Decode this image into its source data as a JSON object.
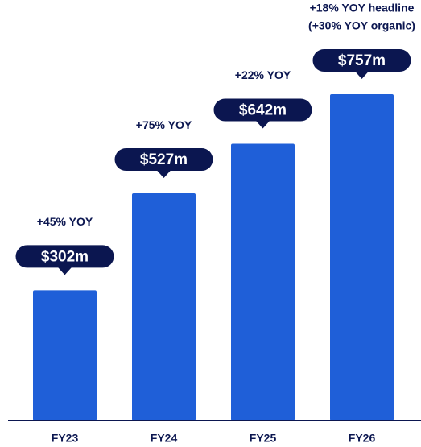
{
  "chart_data": {
    "type": "bar",
    "categories": [
      "FY23",
      "FY24",
      "FY25",
      "FY26"
    ],
    "values": [
      302,
      527,
      642,
      757
    ],
    "value_labels": [
      "$302m",
      "$527m",
      "$642m",
      "$757m"
    ],
    "annotations": [
      [
        "+45% YOY"
      ],
      [
        "+75% YOY"
      ],
      [
        "+22% YOY"
      ],
      [
        "+18% YOY headline",
        "(+30% YOY organic)"
      ]
    ],
    "color": "#1f5fd8",
    "label_color": "#0b1650",
    "ylim": [
      0,
      1000
    ]
  }
}
